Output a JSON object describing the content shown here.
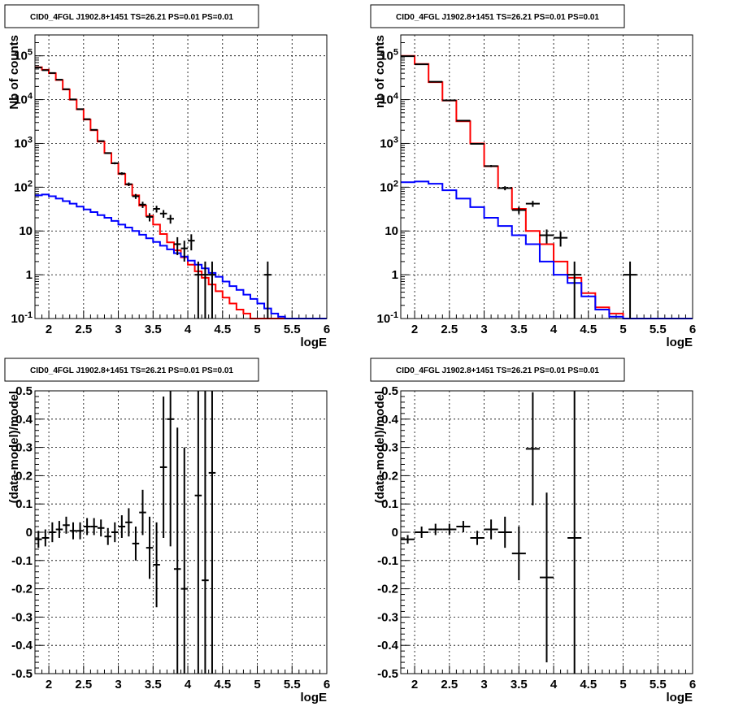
{
  "chart_data": [
    {
      "type": "histogram",
      "title": "CID0_4FGL J1902.8+1451 TS=26.21 PS=0.01 PS=0.01",
      "xlabel": "logE",
      "ylabel": "Nb of counts",
      "xlim": [
        1.8,
        6
      ],
      "ylim": [
        0.1,
        300000
      ],
      "yscale": "log",
      "grid": true,
      "x_ticks": [
        "2",
        "2.5",
        "3",
        "3.5",
        "4",
        "4.5",
        "5",
        "5.5",
        "6"
      ],
      "y_ticks": [
        "10^-1",
        "1",
        "10",
        "10^2",
        "10^3",
        "10^4",
        "10^5"
      ],
      "bin_edges": [
        1.8,
        1.9,
        2.0,
        2.1,
        2.2,
        2.3,
        2.4,
        2.5,
        2.6,
        2.7,
        2.8,
        2.9,
        3.0,
        3.1,
        3.2,
        3.3,
        3.4,
        3.5,
        3.6,
        3.7,
        3.8,
        3.9,
        4.0,
        4.1,
        4.2,
        4.3,
        4.4,
        4.5,
        4.6,
        4.7,
        4.8,
        4.9,
        5.0,
        5.1,
        5.2,
        5.3,
        5.4,
        5.5,
        5.6,
        5.7,
        5.8,
        5.9,
        6.0
      ],
      "series": [
        {
          "color": "#ff0000",
          "values": [
            55000,
            48000,
            40000,
            28000,
            17000,
            10000,
            6000,
            3500,
            2000,
            1100,
            600,
            350,
            200,
            115,
            65,
            38,
            22,
            14,
            8.5,
            5.5,
            3.6,
            2.5,
            1.7,
            1.2,
            0.85,
            0.6,
            0.42,
            0.3,
            0.22,
            0.16,
            0.13,
            0.1,
            0.1,
            0.1,
            0.1,
            0.1,
            0.1,
            0.1,
            0.1,
            0.1,
            0.1,
            0.1
          ]
        },
        {
          "color": "#0000ff",
          "values": [
            65,
            68,
            62,
            55,
            48,
            42,
            36,
            31,
            27,
            23,
            20,
            17,
            14,
            12,
            10,
            8.2,
            6.8,
            5.6,
            4.6,
            3.8,
            3.1,
            2.6,
            2.1,
            1.7,
            1.4,
            1.1,
            0.9,
            0.7,
            0.55,
            0.45,
            0.35,
            0.28,
            0.22,
            0.17,
            0.13,
            0.11,
            0.1,
            0.1,
            0.1,
            0.1,
            0.1,
            0.1
          ]
        }
      ],
      "points": [
        {
          "x": 1.85,
          "y": 54000,
          "err": 230
        },
        {
          "x": 1.95,
          "y": 47000,
          "err": 220
        },
        {
          "x": 2.05,
          "y": 40500,
          "err": 200
        },
        {
          "x": 2.15,
          "y": 28500,
          "err": 170
        },
        {
          "x": 2.25,
          "y": 17300,
          "err": 130
        },
        {
          "x": 2.35,
          "y": 10100,
          "err": 100
        },
        {
          "x": 2.45,
          "y": 6050,
          "err": 78
        },
        {
          "x": 2.55,
          "y": 3580,
          "err": 60
        },
        {
          "x": 2.65,
          "y": 2040,
          "err": 45
        },
        {
          "x": 2.75,
          "y": 1130,
          "err": 34
        },
        {
          "x": 2.85,
          "y": 600,
          "err": 25
        },
        {
          "x": 2.95,
          "y": 352,
          "err": 19
        },
        {
          "x": 3.05,
          "y": 205,
          "err": 14
        },
        {
          "x": 3.15,
          "y": 117,
          "err": 11
        },
        {
          "x": 3.25,
          "y": 62,
          "err": 8
        },
        {
          "x": 3.35,
          "y": 40,
          "err": 6.5
        },
        {
          "x": 3.45,
          "y": 21,
          "err": 4.5
        },
        {
          "x": 3.55,
          "y": 32,
          "err": 5.6
        },
        {
          "x": 3.65,
          "y": 25,
          "err": 5
        },
        {
          "x": 3.75,
          "y": 19,
          "err": 4.3
        },
        {
          "x": 3.85,
          "y": 5,
          "err": 2.2
        },
        {
          "x": 3.95,
          "y": 4,
          "err": 2
        },
        {
          "x": 4.05,
          "y": 6,
          "err": 2.4
        },
        {
          "x": 4.15,
          "y": 1,
          "err": 1
        },
        {
          "x": 4.25,
          "y": 1,
          "err": 1
        },
        {
          "x": 4.35,
          "y": 1,
          "err": 1
        },
        {
          "x": 5.15,
          "y": 1,
          "err": 1
        }
      ]
    },
    {
      "type": "histogram",
      "title": "CID0_4FGL J1902.8+1451 TS=26.21 PS=0.01 PS=0.01",
      "xlabel": "logE",
      "ylabel": "nb of counts",
      "xlim": [
        1.8,
        6
      ],
      "ylim": [
        0.1,
        300000
      ],
      "yscale": "log",
      "grid": true,
      "x_ticks": [
        "2",
        "2.5",
        "3",
        "3.5",
        "4",
        "4.5",
        "5",
        "5.5",
        "6"
      ],
      "y_ticks": [
        "10^-1",
        "1",
        "10",
        "10^2",
        "10^3",
        "10^4",
        "10^5"
      ],
      "bin_edges": [
        1.8,
        2.0,
        2.2,
        2.4,
        2.6,
        2.8,
        3.0,
        3.2,
        3.4,
        3.6,
        3.8,
        4.0,
        4.2,
        4.4,
        4.6,
        4.8,
        5.0,
        5.2,
        5.4,
        5.6,
        5.8,
        6.0
      ],
      "series": [
        {
          "color": "#ff0000",
          "values": [
            100000,
            65000,
            25000,
            9500,
            3200,
            1000,
            300,
            95,
            32,
            10,
            5,
            2,
            0.85,
            0.38,
            0.18,
            0.13,
            0.1,
            0.1,
            0.1,
            0.1,
            0.1
          ]
        },
        {
          "color": "#0000ff",
          "values": [
            130,
            135,
            120,
            85,
            55,
            35,
            20,
            13,
            8,
            5,
            2,
            1,
            0.65,
            0.32,
            0.16,
            0.11,
            0.1,
            0.1,
            0.1,
            0.1,
            0.1
          ]
        }
      ],
      "points": [
        {
          "x": 1.9,
          "y": 98000,
          "err": 310
        },
        {
          "x": 2.1,
          "y": 64000,
          "err": 250
        },
        {
          "x": 2.3,
          "y": 25500,
          "err": 160
        },
        {
          "x": 2.5,
          "y": 9600,
          "err": 98
        },
        {
          "x": 2.7,
          "y": 3300,
          "err": 57
        },
        {
          "x": 2.9,
          "y": 980,
          "err": 31
        },
        {
          "x": 3.1,
          "y": 304,
          "err": 17
        },
        {
          "x": 3.3,
          "y": 95,
          "err": 10
        },
        {
          "x": 3.5,
          "y": 30,
          "err": 5.5
        },
        {
          "x": 3.7,
          "y": 42,
          "err": 6.5
        },
        {
          "x": 3.9,
          "y": 8,
          "err": 2.8
        },
        {
          "x": 4.1,
          "y": 7,
          "err": 2.6
        },
        {
          "x": 4.3,
          "y": 1,
          "err": 1
        },
        {
          "x": 5.1,
          "y": 1,
          "err": 1
        }
      ]
    },
    {
      "type": "scatter",
      "title": "CID0_4FGL J1902.8+1451 TS=26.21 PS=0.01 PS=0.01",
      "xlabel": "logE",
      "ylabel": "(data-model)/model",
      "xlim": [
        1.8,
        6
      ],
      "ylim": [
        -0.5,
        0.5
      ],
      "grid": true,
      "x_ticks": [
        "2",
        "2.5",
        "3",
        "3.5",
        "4",
        "4.5",
        "5",
        "5.5",
        "6"
      ],
      "y_ticks": [
        "-0.5",
        "-0.4",
        "-0.3",
        "-0.2",
        "-0.1",
        "0",
        "0.1",
        "0.2",
        "0.3",
        "0.4",
        "0.5"
      ],
      "half_width": 0.05,
      "points": [
        {
          "x": 1.85,
          "y": -0.025,
          "err": 0.03
        },
        {
          "x": 1.95,
          "y": -0.02,
          "err": 0.03
        },
        {
          "x": 2.05,
          "y": 0.0,
          "err": 0.035
        },
        {
          "x": 2.15,
          "y": 0.01,
          "err": 0.03
        },
        {
          "x": 2.25,
          "y": 0.025,
          "err": 0.03
        },
        {
          "x": 2.35,
          "y": 0.005,
          "err": 0.03
        },
        {
          "x": 2.45,
          "y": 0.005,
          "err": 0.03
        },
        {
          "x": 2.55,
          "y": 0.02,
          "err": 0.03
        },
        {
          "x": 2.65,
          "y": 0.02,
          "err": 0.03
        },
        {
          "x": 2.75,
          "y": 0.015,
          "err": 0.03
        },
        {
          "x": 2.85,
          "y": -0.015,
          "err": 0.03
        },
        {
          "x": 2.95,
          "y": 0.0,
          "err": 0.035
        },
        {
          "x": 3.05,
          "y": 0.02,
          "err": 0.04
        },
        {
          "x": 3.15,
          "y": 0.035,
          "err": 0.05
        },
        {
          "x": 3.25,
          "y": -0.04,
          "err": 0.06
        },
        {
          "x": 3.35,
          "y": 0.07,
          "err": 0.08
        },
        {
          "x": 3.45,
          "y": -0.055,
          "err": 0.11
        },
        {
          "x": 3.55,
          "y": -0.115,
          "err": 0.15
        },
        {
          "x": 3.65,
          "y": 0.23,
          "err": 0.25
        },
        {
          "x": 3.75,
          "y": 0.4,
          "err": 0.45
        },
        {
          "x": 3.85,
          "y": -0.13,
          "err": 0.5
        },
        {
          "x": 3.95,
          "y": -0.2,
          "err": 0.5
        },
        {
          "x": 4.15,
          "y": 0.13,
          "err": 0.9
        },
        {
          "x": 4.25,
          "y": -0.17,
          "err": 0.9
        },
        {
          "x": 4.35,
          "y": 0.21,
          "err": 0.9
        }
      ]
    },
    {
      "type": "scatter",
      "title": "CID0_4FGL J1902.8+1451 TS=26.21 PS=0.01 PS=0.01",
      "xlabel": "logE",
      "ylabel": "(data-model)/model",
      "xlim": [
        1.8,
        6
      ],
      "ylim": [
        -0.5,
        0.5
      ],
      "grid": true,
      "x_ticks": [
        "2",
        "2.5",
        "3",
        "3.5",
        "4",
        "4.5",
        "5",
        "5.5",
        "6"
      ],
      "y_ticks": [
        "-0.5",
        "-0.4",
        "-0.3",
        "-0.2",
        "-0.1",
        "0",
        "0.1",
        "0.2",
        "0.3",
        "0.4",
        "0.5"
      ],
      "half_width": 0.1,
      "points": [
        {
          "x": 1.9,
          "y": -0.025,
          "err": 0.015
        },
        {
          "x": 2.1,
          "y": 0.0,
          "err": 0.02
        },
        {
          "x": 2.3,
          "y": 0.01,
          "err": 0.02
        },
        {
          "x": 2.5,
          "y": 0.01,
          "err": 0.02
        },
        {
          "x": 2.7,
          "y": 0.02,
          "err": 0.02
        },
        {
          "x": 2.9,
          "y": -0.02,
          "err": 0.025
        },
        {
          "x": 3.1,
          "y": 0.01,
          "err": 0.035
        },
        {
          "x": 3.3,
          "y": 0.0,
          "err": 0.055
        },
        {
          "x": 3.5,
          "y": -0.075,
          "err": 0.095
        },
        {
          "x": 3.7,
          "y": 0.295,
          "err": 0.2
        },
        {
          "x": 3.9,
          "y": -0.16,
          "err": 0.3
        },
        {
          "x": 4.3,
          "y": -0.02,
          "err": 0.9
        }
      ]
    }
  ]
}
